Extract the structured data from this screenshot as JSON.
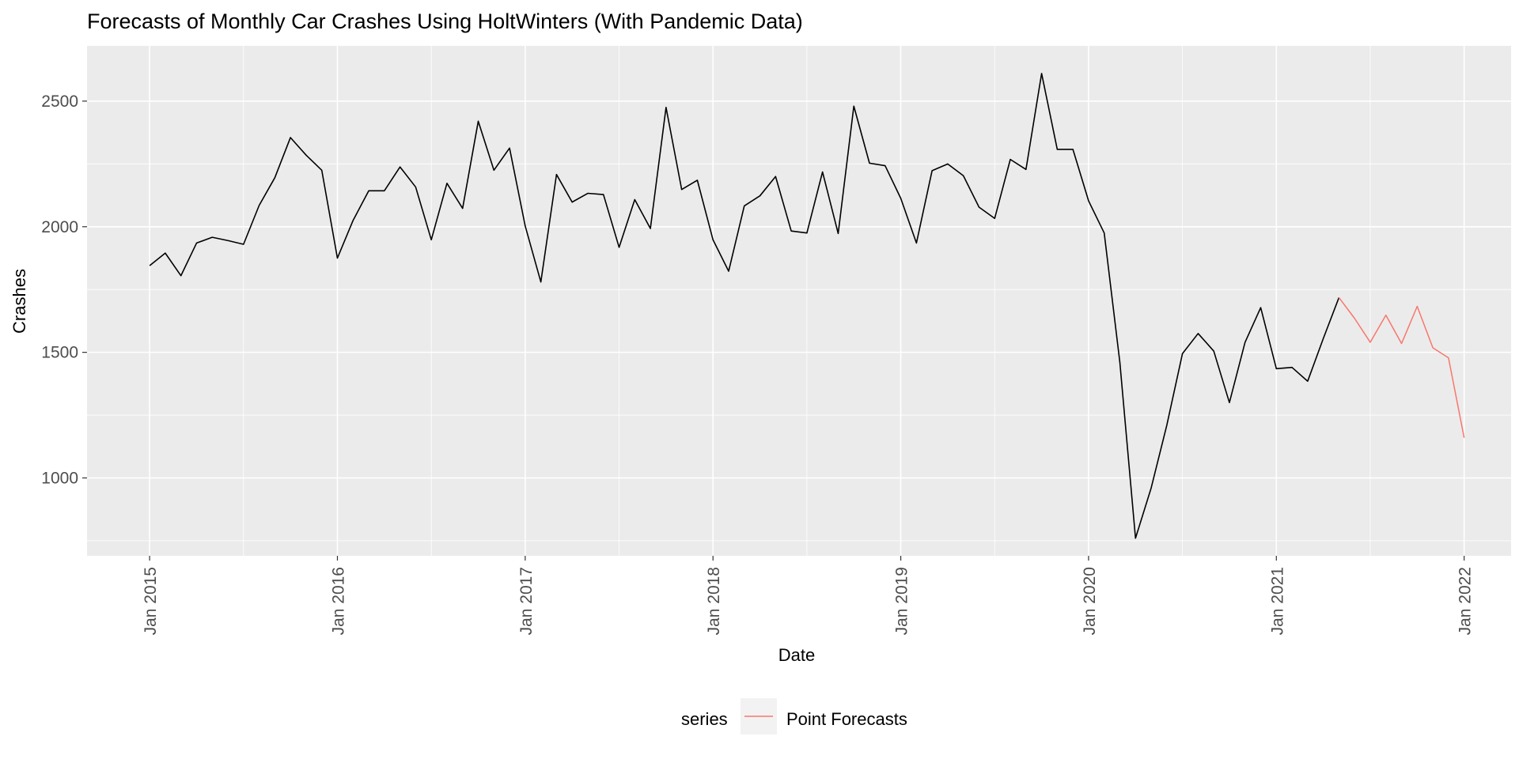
{
  "chart_data": {
    "type": "line",
    "title": "Forecasts of Monthly Car Crashes Using HoltWinters (With Pandemic Data)",
    "xlabel": "Date",
    "ylabel": "Crashes",
    "x_ticks": [
      "Jan 2015",
      "Jan 2016",
      "Jan 2017",
      "Jan 2018",
      "Jan 2019",
      "Jan 2020",
      "Jan 2021",
      "Jan 2022"
    ],
    "y_ticks": [
      1000,
      1500,
      2000,
      2500
    ],
    "xlim": [
      "2014-09",
      "2022-04"
    ],
    "ylim": [
      690,
      2720
    ],
    "grid": true,
    "legend": {
      "position": "bottom",
      "title": "series",
      "entries": [
        {
          "label": "Point Forecasts",
          "color": "#F8766D"
        }
      ]
    },
    "series": [
      {
        "color": "#000000",
        "x": [
          "2015-01",
          "2015-02",
          "2015-03",
          "2015-04",
          "2015-05",
          "2015-06",
          "2015-07",
          "2015-08",
          "2015-09",
          "2015-10",
          "2015-11",
          "2015-12",
          "2016-01",
          "2016-02",
          "2016-03",
          "2016-04",
          "2016-05",
          "2016-06",
          "2016-07",
          "2016-08",
          "2016-09",
          "2016-10",
          "2016-11",
          "2016-12",
          "2017-01",
          "2017-02",
          "2017-03",
          "2017-04",
          "2017-05",
          "2017-06",
          "2017-07",
          "2017-08",
          "2017-09",
          "2017-10",
          "2017-11",
          "2017-12",
          "2018-01",
          "2018-02",
          "2018-03",
          "2018-04",
          "2018-05",
          "2018-06",
          "2018-07",
          "2018-08",
          "2018-09",
          "2018-10",
          "2018-11",
          "2018-12",
          "2019-01",
          "2019-02",
          "2019-03",
          "2019-04",
          "2019-05",
          "2019-06",
          "2019-07",
          "2019-08",
          "2019-09",
          "2019-10",
          "2019-11",
          "2019-12",
          "2020-01",
          "2020-02",
          "2020-03",
          "2020-04",
          "2020-05",
          "2020-06",
          "2020-07",
          "2020-08",
          "2020-09",
          "2020-10",
          "2020-11",
          "2020-12",
          "2021-01",
          "2021-02",
          "2021-03",
          "2021-04",
          "2021-05"
        ],
        "values": [
          1845,
          1895,
          1805,
          1935,
          1958,
          1945,
          1930,
          2085,
          2195,
          2355,
          2285,
          2225,
          1875,
          2025,
          2143,
          2143,
          2238,
          2158,
          1948,
          2173,
          2073,
          2420,
          2225,
          2313,
          2003,
          1780,
          2208,
          2098,
          2133,
          2128,
          1918,
          2108,
          1993,
          2475,
          2148,
          2185,
          1948,
          1823,
          2083,
          2123,
          2200,
          1983,
          1975,
          2218,
          1973,
          2480,
          2253,
          2243,
          2113,
          1935,
          2223,
          2250,
          2203,
          2078,
          2033,
          2268,
          2228,
          2610,
          2308,
          2308,
          2103,
          1975,
          1460,
          760,
          960,
          1210,
          1495,
          1575,
          1505,
          1300,
          1540,
          1678,
          1435,
          1440,
          1385,
          1555,
          1718
        ]
      },
      {
        "name": "Point Forecasts",
        "color": "#F8766D",
        "x": [
          "2021-05",
          "2021-06",
          "2021-07",
          "2021-08",
          "2021-09",
          "2021-10",
          "2021-11",
          "2021-12",
          "2022-01"
        ],
        "values": [
          1718,
          1635,
          1540,
          1648,
          1535,
          1683,
          1518,
          1478,
          1160
        ]
      }
    ]
  }
}
